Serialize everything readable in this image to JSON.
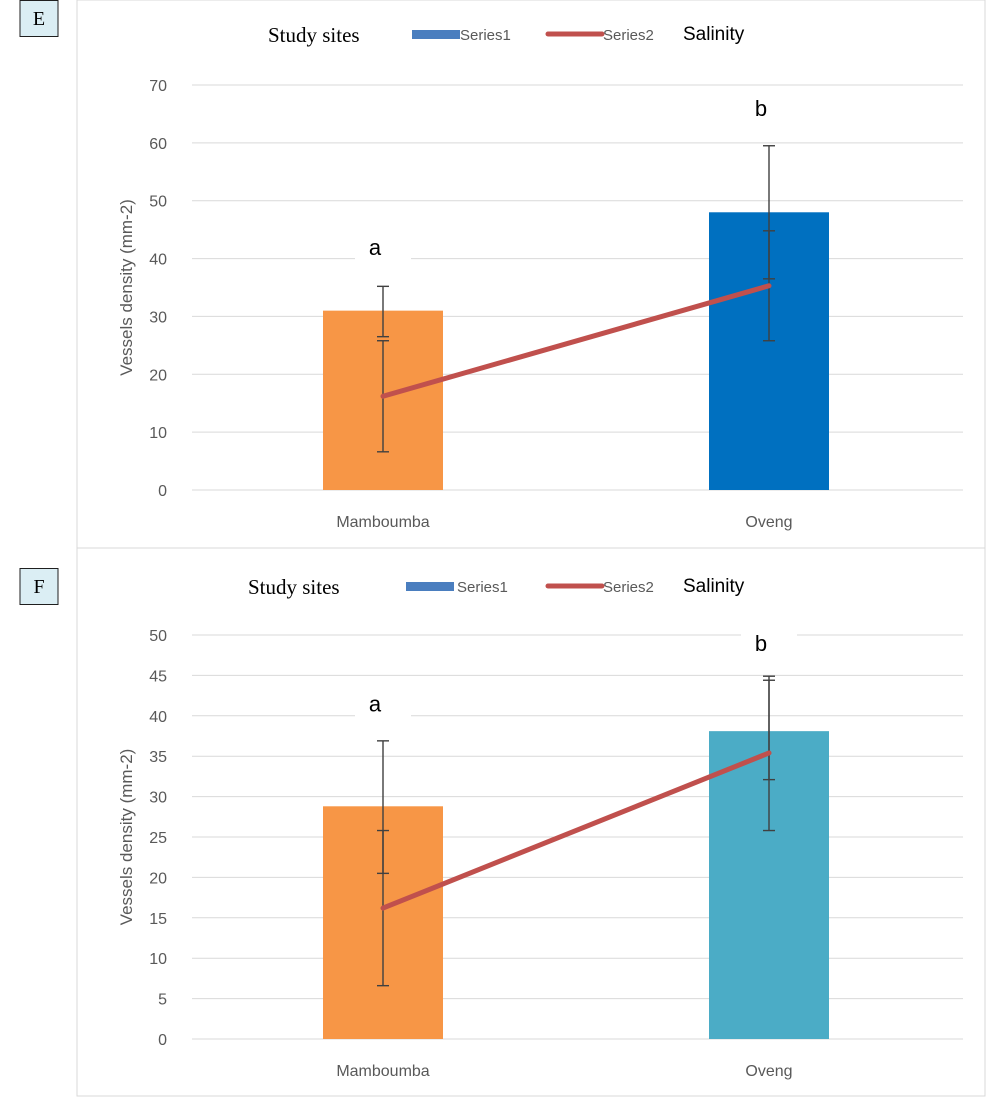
{
  "chart_data": [
    {
      "type": "bar",
      "panel_label": "E",
      "legend_prefix": "Study sites",
      "legend_suffix": "Salinity",
      "categories": [
        "Mamboumba",
        "Oveng"
      ],
      "ylabel": "Vessels density (mm-2)",
      "ylim": [
        0,
        70
      ],
      "ytick_step": 10,
      "y_ticks": [
        "0",
        "10",
        "20",
        "30",
        "40",
        "50",
        "60",
        "70"
      ],
      "grid": true,
      "legend_position": "top",
      "series": [
        {
          "name": "Series1",
          "kind": "bar",
          "legend_color": "#4a7ebf",
          "values": [
            31,
            48
          ],
          "bar_colors": [
            "#f79646",
            "#0070c0"
          ],
          "error": [
            [
              26.5,
              35.2
            ],
            [
              36.5,
              59.5
            ]
          ]
        },
        {
          "name": "Series2",
          "kind": "line",
          "color": "#c0504d",
          "values": [
            16.2,
            35.3
          ],
          "error": [
            [
              6.6,
              25.8
            ],
            [
              25.8,
              44.8
            ]
          ]
        }
      ],
      "annotations": [
        {
          "category": "Mamboumba",
          "text": "a",
          "y": 42
        },
        {
          "category": "Oveng",
          "text": "b",
          "y": 66
        }
      ]
    },
    {
      "type": "bar",
      "panel_label": "F",
      "legend_prefix": "Study sites",
      "legend_suffix": "Salinity",
      "categories": [
        "Mamboumba",
        "Oveng"
      ],
      "ylabel": "Vessels density (mm-2)",
      "ylim": [
        0,
        50
      ],
      "ytick_step": 5,
      "y_ticks": [
        "0",
        "5",
        "10",
        "15",
        "20",
        "25",
        "30",
        "35",
        "40",
        "45",
        "50"
      ],
      "grid": true,
      "legend_position": "top",
      "series": [
        {
          "name": "Series1",
          "kind": "bar",
          "legend_color": "#4a7ebf",
          "values": [
            28.8,
            38.1
          ],
          "bar_colors": [
            "#f79646",
            "#4bacc6"
          ],
          "error": [
            [
              20.5,
              36.9
            ],
            [
              32.1,
              44.9
            ]
          ]
        },
        {
          "name": "Series2",
          "kind": "line",
          "color": "#c0504d",
          "values": [
            16.2,
            35.4
          ],
          "error": [
            [
              6.6,
              25.8
            ],
            [
              25.8,
              44.4
            ]
          ]
        }
      ],
      "annotations": [
        {
          "category": "Mamboumba",
          "text": "a",
          "y": 41.5
        },
        {
          "category": "Oveng",
          "text": "b",
          "y": 49
        }
      ]
    }
  ]
}
